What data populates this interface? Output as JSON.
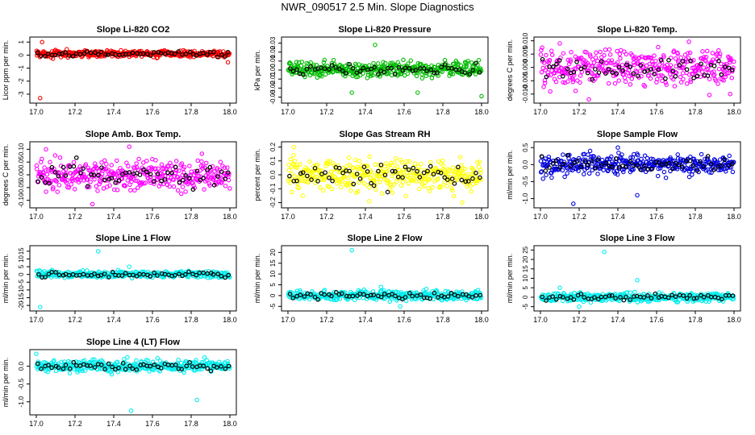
{
  "page_title": "NWR_090517  2.5 Min. Slope Diagnostics",
  "colors": {
    "black_pts": "#000000"
  },
  "chart_data": [
    {
      "type": "scatter",
      "title": "Slope Li-820 CO2",
      "ylabel": "Licor ppm per min.",
      "xlim": [
        17.0,
        18.0
      ],
      "ylim": [
        -3.5,
        1.2
      ],
      "xticks": [
        "17.0",
        "17.2",
        "17.4",
        "17.6",
        "17.8",
        "18.0"
      ],
      "yticks": [
        -3,
        -2,
        -1,
        0,
        1
      ],
      "ytick_labels": [
        "-3",
        "-2",
        "-1",
        "0",
        "1"
      ],
      "color": "#ff0000",
      "center": 0.1,
      "spread": 0.18,
      "outliers": [
        [
          17.02,
          -3.3
        ],
        [
          17.03,
          1.0
        ],
        [
          17.99,
          -0.55
        ]
      ]
    },
    {
      "type": "scatter",
      "title": "Slope Li-820 Pressure",
      "ylabel": "kPa per min.",
      "xlim": [
        17.0,
        18.0
      ],
      "ylim": [
        -0.034,
        0.034
      ],
      "xticks": [
        "17.0",
        "17.2",
        "17.4",
        "17.6",
        "17.8",
        "18.0"
      ],
      "yticks": [
        -0.03,
        -0.02,
        -0.01,
        0.0,
        0.01,
        0.02,
        0.03
      ],
      "ytick_labels": [
        "-0.03",
        "-0.02",
        "-0.01",
        "0.00",
        "0.01",
        "0.02",
        "0.03"
      ],
      "color": "#00bb00",
      "center": 0.001,
      "spread": 0.006,
      "outliers": [
        [
          17.45,
          0.028
        ],
        [
          17.33,
          -0.025
        ],
        [
          17.67,
          -0.025
        ],
        [
          18.0,
          -0.029
        ]
      ]
    },
    {
      "type": "scatter",
      "title": "Slope Li-820 Temp.",
      "ylabel": "degrees C per min.",
      "xlim": [
        17.0,
        18.0
      ],
      "ylim": [
        -0.0125,
        0.0105
      ],
      "xticks": [
        "17.0",
        "17.2",
        "17.4",
        "17.6",
        "17.8",
        "18.0"
      ],
      "yticks": [
        -0.01,
        -0.005,
        0.0,
        0.005,
        0.01
      ],
      "ytick_labels": [
        "-0.010",
        "-0.005",
        "0.000",
        "0.005",
        "0.010"
      ],
      "color": "#ff00ff",
      "center": 0.0,
      "spread": 0.005,
      "outliers": [
        [
          17.25,
          -0.012
        ],
        [
          17.1,
          0.009
        ],
        [
          17.98,
          -0.01
        ]
      ]
    },
    {
      "type": "scatter",
      "title": "Slope Amb. Box Temp.",
      "ylabel": "degrees C per min.",
      "xlim": [
        17.0,
        18.0
      ],
      "ylim": [
        -0.12,
        0.12
      ],
      "xticks": [
        "17.0",
        "17.2",
        "17.4",
        "17.6",
        "17.8",
        "18.0"
      ],
      "yticks": [
        -0.1,
        -0.05,
        0.0,
        0.05,
        0.1
      ],
      "ytick_labels": [
        "-0.10",
        "-0.05",
        "0.00",
        "0.05",
        "0.10"
      ],
      "color": "#ff00ff",
      "center": 0.0,
      "spread": 0.045,
      "outliers": [
        [
          17.48,
          0.11
        ],
        [
          17.29,
          -0.115
        ],
        [
          17.05,
          0.1
        ]
      ]
    },
    {
      "type": "scatter",
      "title": "Slope Gas Stream RH",
      "ylabel": "percent per min.",
      "xlim": [
        17.0,
        18.0
      ],
      "ylim": [
        -0.22,
        0.22
      ],
      "xticks": [
        "17.0",
        "17.2",
        "17.4",
        "17.6",
        "17.8",
        "18.0"
      ],
      "yticks": [
        -0.2,
        -0.1,
        0.0,
        0.1,
        0.2
      ],
      "ytick_labels": [
        "-0.2",
        "-0.1",
        "0.0",
        "0.1",
        "0.2"
      ],
      "color": "#ffff00",
      "center": 0.0,
      "spread": 0.08,
      "outliers": [
        [
          17.03,
          0.2
        ],
        [
          17.42,
          -0.19
        ],
        [
          17.9,
          -0.2
        ]
      ]
    },
    {
      "type": "scatter",
      "title": "Slope Sample Flow",
      "ylabel": "ml/min per min.",
      "xlim": [
        17.0,
        18.0
      ],
      "ylim": [
        -1.2,
        0.6
      ],
      "xticks": [
        "17.0",
        "17.2",
        "17.4",
        "17.6",
        "17.8",
        "18.0"
      ],
      "yticks": [
        -1.0,
        -0.5,
        0.0,
        0.5
      ],
      "ytick_labels": [
        "-1.0",
        "-0.5",
        "0.0",
        "0.5"
      ],
      "color": "#0000dd",
      "center": 0.0,
      "spread": 0.2,
      "outliers": [
        [
          17.17,
          -1.15
        ],
        [
          17.4,
          0.5
        ],
        [
          17.5,
          -0.9
        ]
      ]
    },
    {
      "type": "scatter",
      "title": "Slope Line 1 Flow",
      "ylabel": "ml/min per min.",
      "xlim": [
        17.0,
        18.0
      ],
      "ylim": [
        -22,
        17
      ],
      "xticks": [
        "17.0",
        "17.2",
        "17.4",
        "17.6",
        "17.8",
        "18.0"
      ],
      "yticks": [
        -20,
        -15,
        -10,
        -5,
        0,
        5,
        10,
        15
      ],
      "ytick_labels": [
        "-20",
        "-15",
        "-10",
        "-5",
        "0",
        "5",
        "10",
        "15"
      ],
      "color": "#00eeee",
      "center": 0.0,
      "spread": 1.5,
      "outliers": [
        [
          17.32,
          15
        ],
        [
          17.02,
          -21
        ],
        [
          17.48,
          5
        ]
      ]
    },
    {
      "type": "scatter",
      "title": "Slope Line 2 Flow",
      "ylabel": "ml/min per min.",
      "xlim": [
        17.0,
        18.0
      ],
      "ylim": [
        -6,
        22
      ],
      "xticks": [
        "17.0",
        "17.2",
        "17.4",
        "17.6",
        "17.8",
        "18.0"
      ],
      "yticks": [
        -5,
        0,
        5,
        10,
        15,
        20
      ],
      "ytick_labels": [
        "-5",
        "0",
        "5",
        "10",
        "15",
        "20"
      ],
      "color": "#00eeee",
      "center": 0.0,
      "spread": 1.5,
      "outliers": [
        [
          17.33,
          21
        ],
        [
          17.48,
          4
        ],
        [
          17.58,
          -5
        ]
      ]
    },
    {
      "type": "scatter",
      "title": "Slope Line 3 Flow",
      "ylabel": "ml/min per min.",
      "xlim": [
        17.0,
        18.0
      ],
      "ylim": [
        -6,
        26
      ],
      "xticks": [
        "17.0",
        "17.2",
        "17.4",
        "17.6",
        "17.8",
        "18.0"
      ],
      "yticks": [
        -5,
        0,
        5,
        10,
        15,
        20,
        25
      ],
      "ytick_labels": [
        "-5",
        "0",
        "5",
        "10",
        "15",
        "20",
        "25"
      ],
      "color": "#00eeee",
      "center": 0.0,
      "spread": 1.6,
      "outliers": [
        [
          17.33,
          24
        ],
        [
          17.5,
          9
        ],
        [
          17.2,
          -5
        ],
        [
          17.1,
          5
        ]
      ]
    },
    {
      "type": "scatter",
      "title": "Slope Line 4 (LT) Flow",
      "ylabel": "ml/min per min.",
      "xlim": [
        17.0,
        18.0
      ],
      "ylim": [
        -1.3,
        0.4
      ],
      "xticks": [
        "17.0",
        "17.2",
        "17.4",
        "17.6",
        "17.8",
        "18.0"
      ],
      "yticks": [
        -1.0,
        -0.5,
        0.0
      ],
      "ytick_labels": [
        "-1.0",
        "-0.5",
        "0.0"
      ],
      "color": "#00eeee",
      "center": 0.0,
      "spread": 0.12,
      "outliers": [
        [
          17.49,
          -1.25
        ],
        [
          17.83,
          -0.95
        ],
        [
          17.0,
          0.35
        ]
      ]
    }
  ]
}
